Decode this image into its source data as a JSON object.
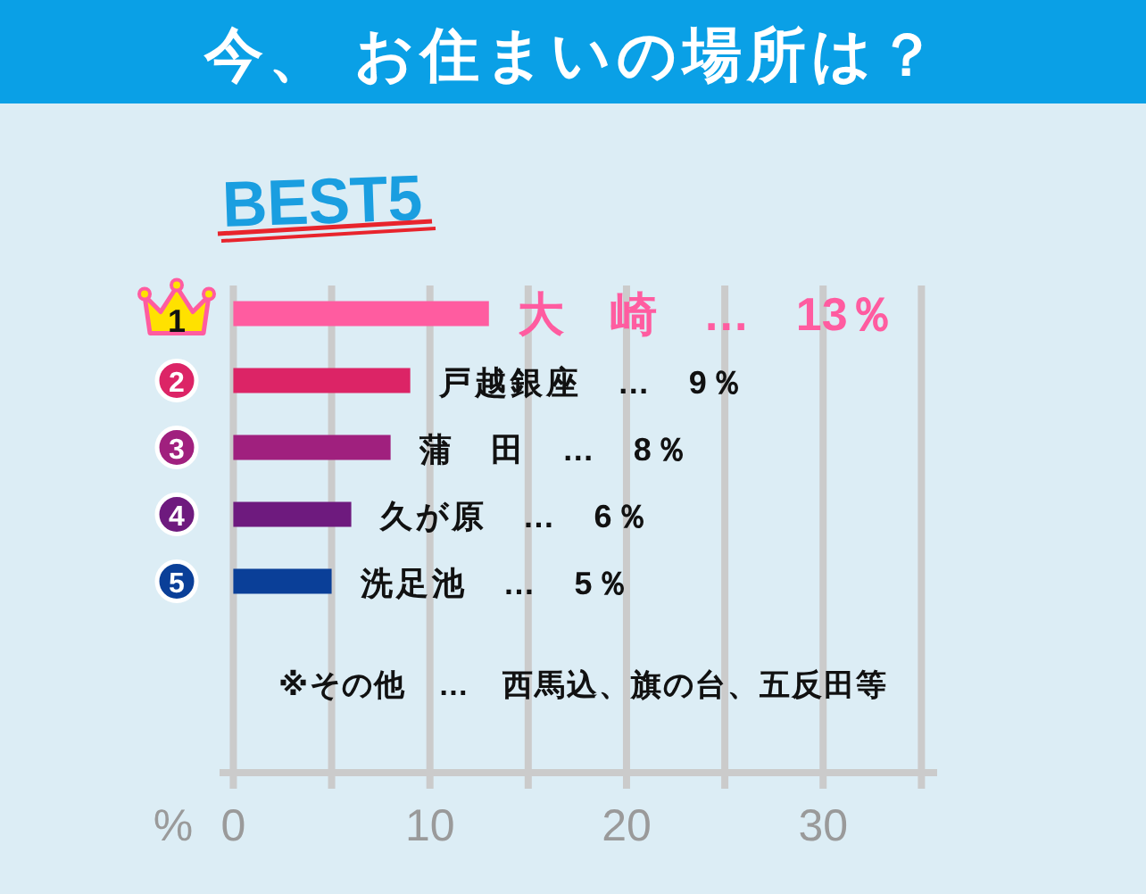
{
  "chart_data": {
    "type": "bar",
    "orientation": "horizontal",
    "title": "今、 お住まいの場所は？",
    "subtitle": "BEST5",
    "xlabel": "%",
    "categories": [
      "1",
      "2",
      "3",
      "4",
      "5"
    ],
    "values": [
      13,
      9,
      8,
      6,
      5
    ],
    "colors": [
      "#ff5ca0",
      "#dc2466",
      "#a0207e",
      "#6e1a7e",
      "#0a3f98"
    ],
    "value_labels": [
      "大　崎　…　13％",
      "戸越銀座　…　9％",
      "蒲　田　…　8％",
      "久が原　…　6％",
      "洗足池　…　5％"
    ],
    "xlim": [
      -0.7,
      35.8
    ],
    "xticks": [
      0,
      {
        "value": 5,
        "label": null
      },
      10,
      {
        "value": 15,
        "label": null
      },
      20,
      {
        "value": 25,
        "label": null
      },
      30,
      {
        "value": 35,
        "label": null
      }
    ],
    "grid": "x",
    "annotations": [
      "※その他　…　西馬込、旗の台、五反田等"
    ]
  }
}
